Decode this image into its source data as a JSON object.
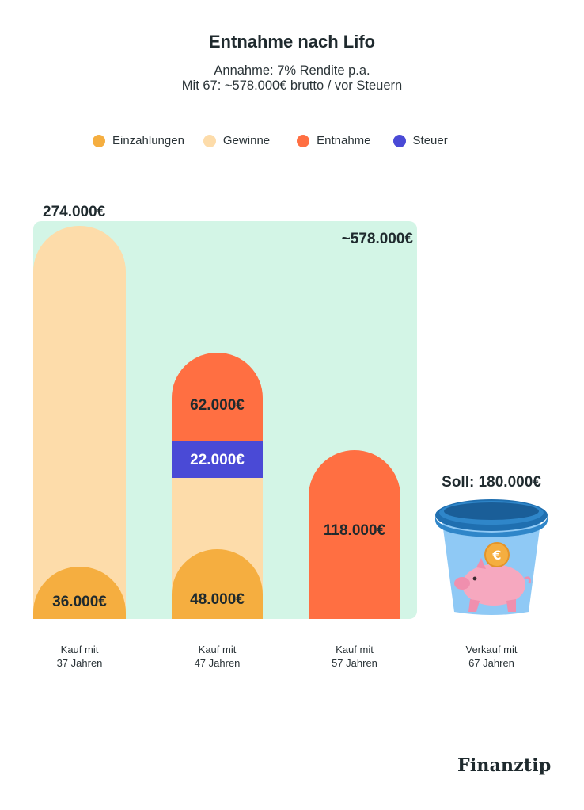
{
  "chart_data": {
    "type": "bar",
    "title": "Entnahme nach Lifo",
    "subtitle_lines": [
      "Annahme: 7% Rendite p.a.",
      "Mit 67: ~578.000€ brutto / vor Steuern"
    ],
    "legend": [
      {
        "name": "Einzahlungen",
        "color": "#f5ae40"
      },
      {
        "name": "Gewinne",
        "color": "#fddcaa"
      },
      {
        "name": "Entnahme",
        "color": "#ff6f42"
      },
      {
        "name": "Steuer",
        "color": "#4a4ad6"
      }
    ],
    "total_label": "~578.000€",
    "bars": [
      {
        "category_lines": [
          "Kauf mit",
          "37 Jahren"
        ],
        "top_label": "274.000€",
        "segments": [
          {
            "series": "Einzahlungen",
            "label": "36.000€"
          },
          {
            "series": "Gewinne",
            "label": ""
          }
        ]
      },
      {
        "category_lines": [
          "Kauf mit",
          "47 Jahren"
        ],
        "top_label": "",
        "segments": [
          {
            "series": "Einzahlungen",
            "label": "48.000€"
          },
          {
            "series": "Gewinne",
            "label": ""
          },
          {
            "series": "Steuer",
            "label": "22.000€"
          },
          {
            "series": "Entnahme",
            "label": "62.000€"
          }
        ]
      },
      {
        "category_lines": [
          "Kauf mit",
          "57 Jahren"
        ],
        "top_label": "",
        "segments": [
          {
            "series": "Entnahme",
            "label": "118.000€"
          }
        ]
      }
    ],
    "target": {
      "label": "Soll: 180.000€",
      "category_lines": [
        "Verkauf mit",
        "67 Jahren"
      ]
    }
  },
  "branding": {
    "logo_text": "Finanztip"
  },
  "colors": {
    "einzahlungen": "#f5ae40",
    "gewinne": "#fddcaa",
    "entnahme": "#ff6f42",
    "steuer": "#4a4ad6",
    "area": "#d3f5e6",
    "pot_light": "#8fc9f5",
    "pot_dark": "#1f6fb0",
    "pig": "#f6a8bf"
  }
}
